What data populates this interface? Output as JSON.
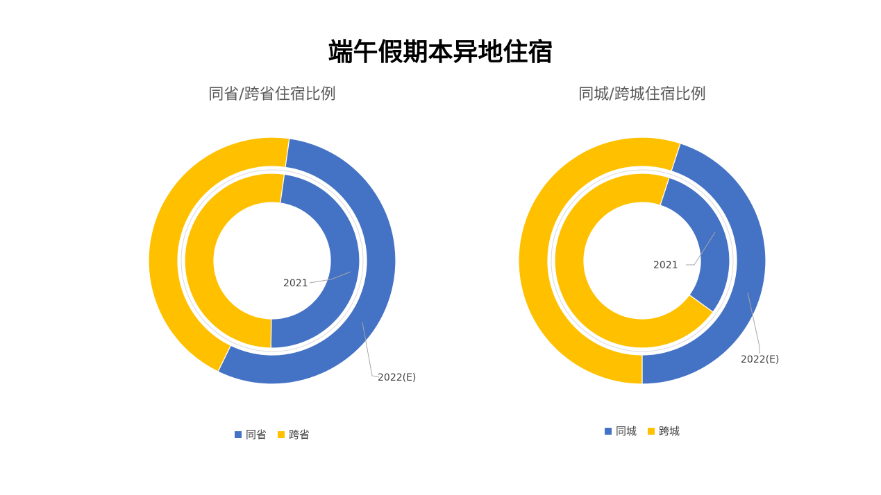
{
  "title": "端午假期本异地住宿",
  "colors": {
    "series1": "#4472C4",
    "series2": "#FFC000",
    "leader": "#A6A6A6"
  },
  "chart_data": [
    {
      "type": "doughnut",
      "title": "同省/跨省住宿比例",
      "legend": {
        "position": "bottom",
        "entries": [
          "同省",
          "跨省"
        ]
      },
      "categories": [
        "同省",
        "跨省"
      ],
      "series": [
        {
          "name": "2021",
          "values": [
            48,
            52
          ]
        },
        {
          "name": "2022(E)",
          "values": [
            55,
            45
          ]
        }
      ]
    },
    {
      "type": "doughnut",
      "title": "同城/跨城住宿比例",
      "legend": {
        "position": "bottom",
        "entries": [
          "同城",
          "跨城"
        ]
      },
      "categories": [
        "同城",
        "跨城"
      ],
      "series": [
        {
          "name": "2021",
          "values": [
            30,
            70
          ]
        },
        {
          "name": "2022(E)",
          "values": [
            45,
            55
          ]
        }
      ]
    }
  ]
}
